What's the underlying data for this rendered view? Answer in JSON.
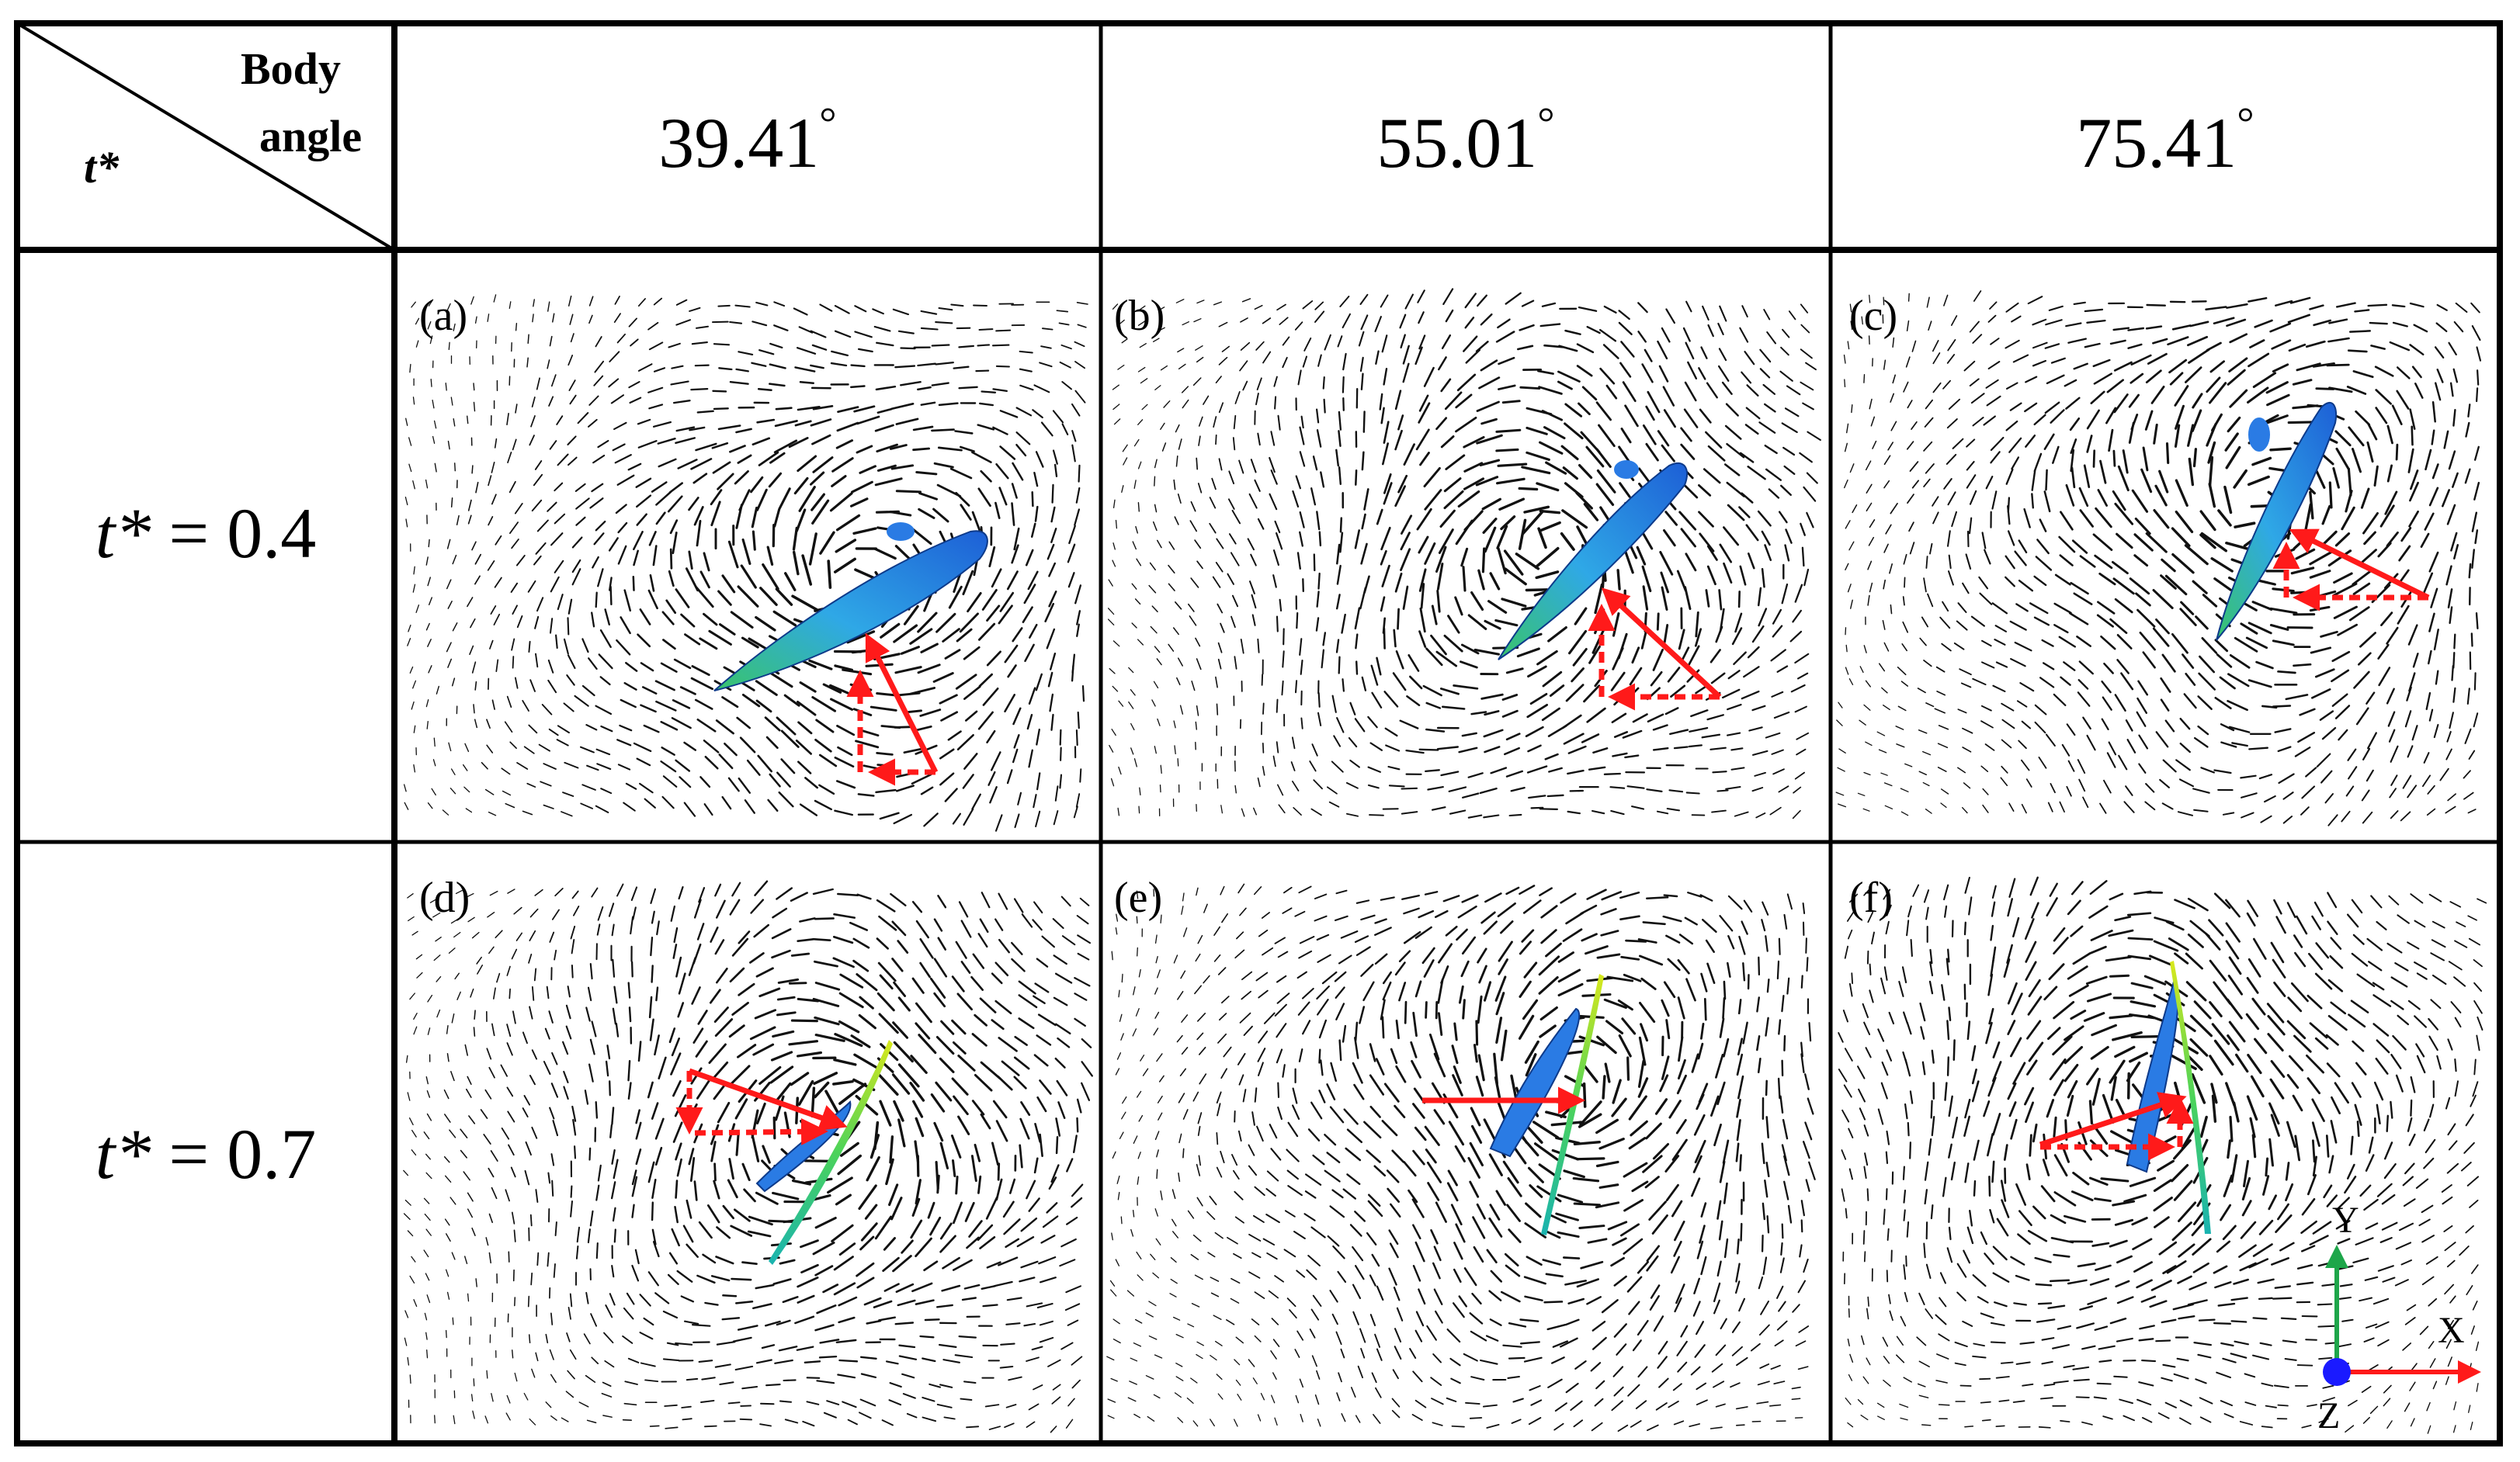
{
  "header": {
    "corner_top": "Body",
    "corner_bottom": "angle",
    "corner_row_label": "t*",
    "angles": [
      "39.41",
      "55.01",
      "75.41"
    ],
    "degree_symbol": "°"
  },
  "rows": [
    {
      "label_var": "t*",
      "label_rest": " = 0.4"
    },
    {
      "label_var": "t*",
      "label_rest": " = 0.7"
    }
  ],
  "panels": [
    {
      "label": "(a)",
      "angle_deg": 39.41,
      "t_star": 0.4
    },
    {
      "label": "(b)",
      "angle_deg": 55.01,
      "t_star": 0.4
    },
    {
      "label": "(c)",
      "angle_deg": 75.41,
      "t_star": 0.4
    },
    {
      "label": "(d)",
      "angle_deg": 39.41,
      "t_star": 0.7
    },
    {
      "label": "(e)",
      "angle_deg": 55.01,
      "t_star": 0.7
    },
    {
      "label": "(f)",
      "angle_deg": 75.41,
      "t_star": 0.7
    }
  ],
  "axes_legend": {
    "x": "X",
    "y": "Y",
    "z": "Z",
    "x_color": "#ff1a1a",
    "y_color": "#1ea64a",
    "z_color": "#1a1aff"
  },
  "colors": {
    "force_arrow": "#ff1a1a",
    "wing_dark": "#1d5fd6",
    "wing_light": "#2fa8e6",
    "wing_green": "#39c46b",
    "vector_field": "#111111"
  }
}
